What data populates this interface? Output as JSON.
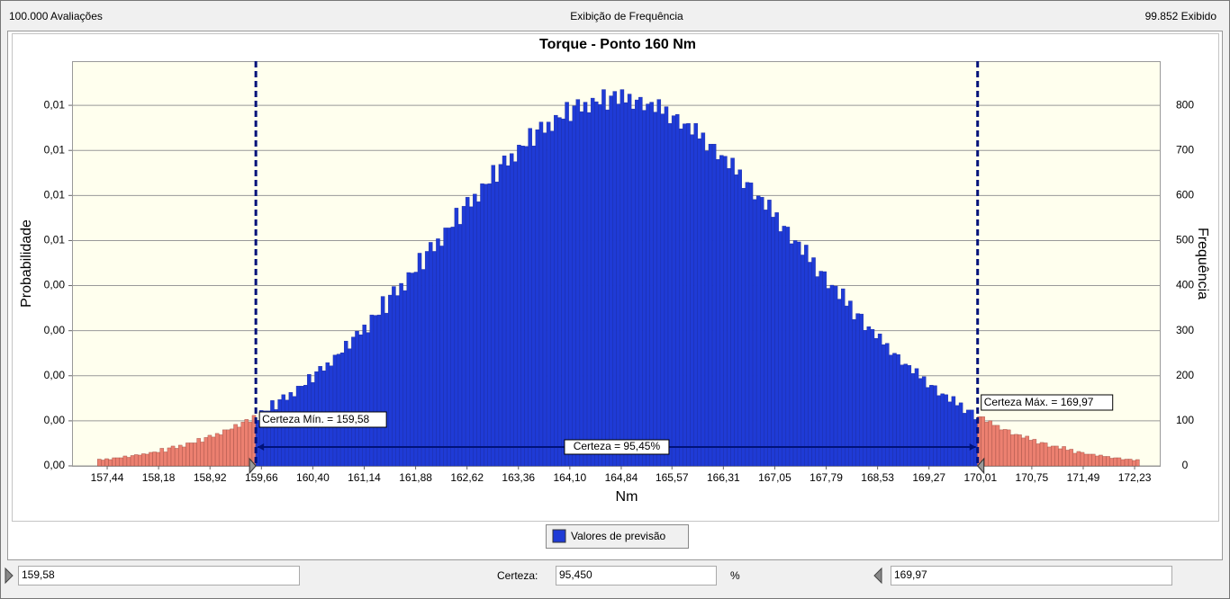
{
  "ui": {
    "top_left": "100.000 Avaliações",
    "top_center": "Exibição de Frequência",
    "top_right": "99.852 Exibido",
    "min_field": "159,58",
    "certainty_label": "Certeza:",
    "certainty_field": "95,450",
    "percent": "%",
    "max_field": "169,97"
  },
  "chart_data": {
    "type": "histogram",
    "title": "Torque - Ponto 160 Nm",
    "x_label": "Nm",
    "y_label": "Probabilidade",
    "y2_label": "Frequência",
    "bins": [
      157.3,
      157.353,
      157.406,
      157.459,
      157.512,
      157.565,
      157.618,
      157.671,
      157.724,
      157.777,
      157.83,
      157.883,
      157.936,
      157.989,
      158.042,
      158.095,
      158.148,
      158.201,
      158.254,
      158.307,
      158.36,
      158.413,
      158.466,
      158.519,
      158.572,
      158.625,
      158.678,
      158.731,
      158.784,
      158.837,
      158.89,
      158.943,
      158.996,
      159.049,
      159.102,
      159.155,
      159.208,
      159.261,
      159.314,
      159.367,
      159.42,
      159.473,
      159.526,
      159.579,
      159.632,
      159.685,
      159.738,
      159.791,
      159.844,
      159.897,
      159.95,
      160.003,
      160.056,
      160.109,
      160.162,
      160.215,
      160.268,
      160.321,
      160.374,
      160.427,
      160.48,
      160.533,
      160.586,
      160.639,
      160.692,
      160.745,
      160.798,
      160.851,
      160.904,
      160.957,
      161.01,
      161.063,
      161.116,
      161.169,
      161.222,
      161.275,
      161.328,
      161.381,
      161.434,
      161.487,
      161.54,
      161.593,
      161.646,
      161.699,
      161.752,
      161.805,
      161.858,
      161.911,
      161.964,
      162.017,
      162.07,
      162.123,
      162.176,
      162.229,
      162.282,
      162.335,
      162.388,
      162.441,
      162.494,
      162.547,
      162.6,
      162.653,
      162.706,
      162.759,
      162.812,
      162.865,
      162.918,
      162.971,
      163.024,
      163.077,
      163.13,
      163.183,
      163.236,
      163.289,
      163.342,
      163.395,
      163.448,
      163.501,
      163.554,
      163.607,
      163.66,
      163.713,
      163.766,
      163.819,
      163.872,
      163.925,
      163.978,
      164.031,
      164.084,
      164.137,
      164.19,
      164.243,
      164.296,
      164.349,
      164.402,
      164.455,
      164.508,
      164.561,
      164.614,
      164.667,
      164.72,
      164.773,
      164.826,
      164.879,
      164.932,
      164.985,
      165.038,
      165.091,
      165.144,
      165.197,
      165.25,
      165.303,
      165.356,
      165.409,
      165.462,
      165.515,
      165.568,
      165.621,
      165.674,
      165.727,
      165.78,
      165.833,
      165.886,
      165.939,
      165.992,
      166.045,
      166.098,
      166.151,
      166.204,
      166.257,
      166.31,
      166.363,
      166.416,
      166.469,
      166.522,
      166.575,
      166.628,
      166.681,
      166.734,
      166.787,
      166.84,
      166.893,
      166.946,
      166.999,
      167.052,
      167.105,
      167.158,
      167.211,
      167.264,
      167.317,
      167.37,
      167.423,
      167.476,
      167.529,
      167.582,
      167.635,
      167.688,
      167.741,
      167.794,
      167.847,
      167.9,
      167.953,
      168.006,
      168.059,
      168.112,
      168.165,
      168.218,
      168.271,
      168.324,
      168.377,
      168.43,
      168.483,
      168.536,
      168.589,
      168.642,
      168.695,
      168.748,
      168.801,
      168.854,
      168.907,
      168.96,
      169.013,
      169.066,
      169.119,
      169.172,
      169.225,
      169.278,
      169.331,
      169.384,
      169.437,
      169.49,
      169.543,
      169.596,
      169.649,
      169.702,
      169.755,
      169.808,
      169.861,
      169.914,
      169.967,
      170.02,
      170.073,
      170.126,
      170.179,
      170.232,
      170.285,
      170.338,
      170.391,
      170.444,
      170.497,
      170.55,
      170.603,
      170.656,
      170.709,
      170.762,
      170.815,
      170.868,
      170.921,
      170.974,
      171.027,
      171.08,
      171.133,
      171.186,
      171.239,
      171.292,
      171.345,
      171.398,
      171.451,
      171.504,
      171.557,
      171.61,
      171.663,
      171.716,
      171.769,
      171.822,
      171.875,
      171.928,
      171.981,
      172.034,
      172.087,
      172.14,
      172.193,
      172.246,
      172.299
    ],
    "series": [
      {
        "name": "Valores de previsão",
        "color": "#1f3bd6",
        "axis": "y2",
        "values": [
          15,
          13,
          16,
          14,
          18,
          18,
          18,
          22,
          19,
          23,
          25,
          24,
          27,
          26,
          30,
          31,
          30,
          39,
          31,
          40,
          44,
          39,
          46,
          42,
          51,
          51,
          51,
          61,
          53,
          63,
          68,
          64,
          72,
          69,
          80,
          80,
          82,
          92,
          86,
          97,
          103,
          97,
          112,
          101,
          123,
          122,
          122,
          145,
          125,
          147,
          158,
          146,
          163,
          154,
          177,
          177,
          179,
          203,
          185,
          209,
          221,
          211,
          229,
          222,
          246,
          248,
          251,
          277,
          260,
          286,
          299,
          291,
          313,
          296,
          335,
          334,
          335,
          376,
          339,
          379,
          398,
          378,
          405,
          389,
          429,
          428,
          430,
          472,
          436,
          476,
          496,
          476,
          504,
          488,
          528,
          528,
          530,
          572,
          536,
          576,
          596,
          575,
          603,
          586,
          626,
          625,
          626,
          667,
          630,
          669,
          688,
          666,
          693,
          675,
          712,
          710,
          709,
          749,
          710,
          746,
          763,
          739,
          763,
          743,
          778,
          773,
          770,
          807,
          765,
          799,
          813,
          786,
          807,
          784,
          816,
          808,
          802,
          835,
          790,
          821,
          831,
          803,
          835,
          806,
          825,
          792,
          812,
          818,
          789,
          803,
          807,
          785,
          813,
          781,
          797,
          760,
          777,
          780,
          748,
          759,
          760,
          735,
          760,
          726,
          739,
          699,
          714,
          714,
          680,
          689,
          687,
          660,
          683,
          646,
          657,
          616,
          629,
          628,
          591,
          599,
          596,
          568,
          590,
          552,
          562,
          520,
          532,
          530,
          493,
          500,
          497,
          468,
          490,
          452,
          462,
          420,
          432,
          431,
          394,
          401,
          399,
          370,
          393,
          355,
          366,
          325,
          338,
          337,
          301,
          309,
          303,
          283,
          293,
          269,
          272,
          246,
          250,
          247,
          224,
          226,
          223,
          205,
          216,
          194,
          198,
          174,
          179,
          178,
          156,
          160,
          158,
          142,
          154,
          134,
          140,
          117,
          124,
          124,
          103,
          109,
          109,
          97,
          100,
          90,
          90,
          80,
          81,
          80,
          69,
          70,
          69,
          62,
          66,
          57,
          59,
          49,
          52,
          51,
          42,
          44,
          44,
          38,
          43,
          35,
          37,
          28,
          32,
          30,
          26,
          26,
          26,
          22,
          24,
          21,
          21,
          17,
          18,
          18,
          14,
          15,
          15,
          12,
          14
        ]
      }
    ],
    "tail_color": "#ec8070",
    "markers": [
      {
        "value": 159.58,
        "label": "Certeza Mín. = 159,58"
      },
      {
        "value": 169.97,
        "label": "Certeza Máx. = 169,97"
      }
    ],
    "certainty": {
      "value": 95.45,
      "label": "Certeza = 95,45%"
    },
    "marker_color": "#00127a",
    "xlim": [
      156.934,
      172.592
    ],
    "xticks": [
      {
        "value": 157.44,
        "label": "157,44"
      },
      {
        "value": 158.18,
        "label": "158,18"
      },
      {
        "value": 158.92,
        "label": "158,92"
      },
      {
        "value": 159.66,
        "label": "159,66"
      },
      {
        "value": 160.4,
        "label": "160,40"
      },
      {
        "value": 161.14,
        "label": "161,14"
      },
      {
        "value": 161.88,
        "label": "161,88"
      },
      {
        "value": 162.62,
        "label": "162,62"
      },
      {
        "value": 163.36,
        "label": "163,36"
      },
      {
        "value": 164.1,
        "label": "164,10"
      },
      {
        "value": 164.84,
        "label": "164,84"
      },
      {
        "value": 165.57,
        "label": "165,57"
      },
      {
        "value": 166.31,
        "label": "166,31"
      },
      {
        "value": 167.05,
        "label": "167,05"
      },
      {
        "value": 167.79,
        "label": "167,79"
      },
      {
        "value": 168.53,
        "label": "168,53"
      },
      {
        "value": 169.27,
        "label": "169,27"
      },
      {
        "value": 170.01,
        "label": "170,01"
      },
      {
        "value": 170.75,
        "label": "170,75"
      },
      {
        "value": 171.49,
        "label": "171,49"
      },
      {
        "value": 172.23,
        "label": "172,23"
      }
    ],
    "ylim": [
      0,
      0.008993
    ],
    "yticks": [
      {
        "value": 0,
        "label": "0,00"
      },
      {
        "value": 0.001001,
        "label": "0,00"
      },
      {
        "value": 0.002003,
        "label": "0,00"
      },
      {
        "value": 0.003004,
        "label": "0,00"
      },
      {
        "value": 0.004006,
        "label": "0,00"
      },
      {
        "value": 0.005007,
        "label": "0,01"
      },
      {
        "value": 0.006009,
        "label": "0,01"
      },
      {
        "value": 0.00701,
        "label": "0,01"
      },
      {
        "value": 0.008012,
        "label": "0,01"
      }
    ],
    "y2lim": [
      0,
      898
    ],
    "y2ticks": [
      0,
      100,
      200,
      300,
      400,
      500,
      600,
      700,
      800
    ],
    "grid": true
  }
}
